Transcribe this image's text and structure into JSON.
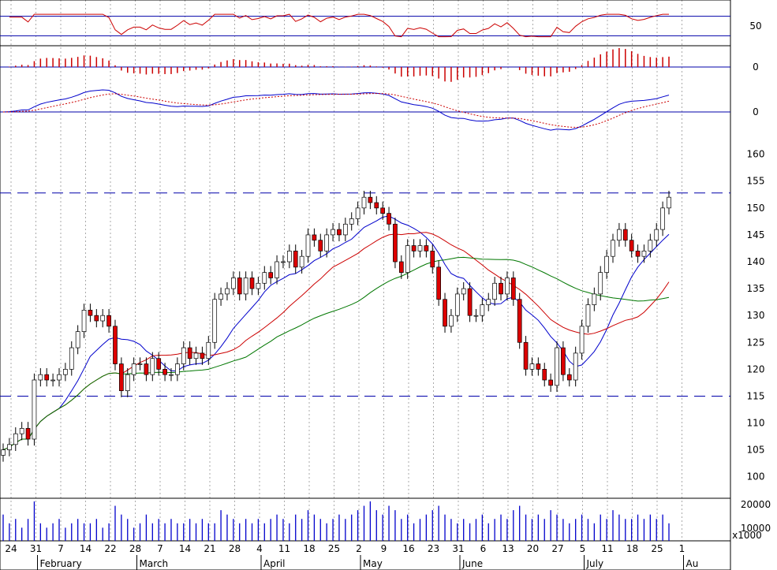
{
  "chart_data": [
    {
      "panel": "rsi",
      "type": "line",
      "ylim": [
        0,
        100
      ],
      "y_ticks": [
        {
          "v": 50,
          "label": "50"
        }
      ],
      "guides": [
        30,
        70
      ],
      "line_color": "#cc0000",
      "guide_color": "#0000aa"
    },
    {
      "panel": "macd_histogram",
      "type": "bar",
      "y_ticks": [
        {
          "v": 0,
          "label": "0"
        }
      ],
      "bar_color": "#cc0000"
    },
    {
      "panel": "macd",
      "type": "line",
      "y_ticks": [
        {
          "v": 0,
          "label": "0"
        }
      ],
      "series_colors": {
        "macd": "#0000cc",
        "signal": "#cc0000"
      }
    },
    {
      "panel": "price",
      "type": "candlestick",
      "ylim": [
        96,
        162
      ],
      "y_ticks": [
        {
          "v": 160,
          "label": "160"
        },
        {
          "v": 155,
          "label": "155"
        },
        {
          "v": 150,
          "label": "150"
        },
        {
          "v": 145,
          "label": "145"
        },
        {
          "v": 140,
          "label": "140"
        },
        {
          "v": 135,
          "label": "135"
        },
        {
          "v": 130,
          "label": "130"
        },
        {
          "v": 125,
          "label": "125"
        },
        {
          "v": 120,
          "label": "120"
        },
        {
          "v": 115,
          "label": "115"
        },
        {
          "v": 110,
          "label": "110"
        },
        {
          "v": 105,
          "label": "105"
        },
        {
          "v": 100,
          "label": "100"
        }
      ],
      "horizontal_lines": [
        152.8,
        115.0
      ],
      "colors": {
        "up": "#ffffff",
        "down": "#dd0000",
        "ma_fast": "#0000cc",
        "ma_mid": "#cc0000",
        "ma_slow": "#007700"
      },
      "closes": [
        105,
        106,
        108,
        109,
        107,
        118,
        119,
        118,
        118,
        119,
        120,
        124,
        127,
        131,
        130,
        129,
        130,
        128,
        121,
        116,
        119,
        121,
        121,
        119,
        122,
        120,
        119,
        119,
        121,
        124,
        122,
        123,
        122,
        125,
        133,
        134,
        135,
        137,
        134,
        137,
        135,
        136,
        138,
        137,
        140,
        140,
        142,
        139,
        141,
        145,
        144,
        142,
        145,
        146,
        145,
        147,
        148,
        150,
        152,
        151,
        150,
        149,
        147,
        140,
        138,
        143,
        142,
        143,
        142,
        139,
        133,
        128,
        130,
        134,
        135,
        130,
        130,
        132,
        133,
        136,
        134,
        137,
        133,
        125,
        120,
        121,
        120,
        118,
        117,
        124,
        119,
        118,
        123,
        128,
        132,
        134,
        138,
        141,
        144,
        146,
        144,
        142,
        141,
        142,
        144,
        146,
        150,
        152
      ],
      "volume": [
        6,
        4,
        5,
        3,
        5,
        9,
        4,
        3,
        4,
        5,
        3,
        4,
        5,
        4,
        4,
        5,
        3,
        4,
        8,
        6,
        5,
        3,
        4,
        6,
        4,
        5,
        4,
        5,
        4,
        4,
        5,
        4,
        5,
        4,
        4,
        7,
        6,
        5,
        4,
        5,
        4,
        5,
        4,
        5,
        6,
        5,
        4,
        6,
        5,
        7,
        6,
        5,
        4,
        5,
        6,
        5,
        6,
        7,
        8,
        9,
        7,
        6,
        8,
        7,
        5,
        6,
        4,
        5,
        6,
        7,
        8,
        6,
        5,
        4,
        5,
        4,
        5,
        6,
        4,
        5,
        6,
        5,
        7,
        8,
        6,
        5,
        6,
        5,
        7,
        6,
        5,
        4,
        5,
        6,
        5,
        4,
        6,
        5,
        7,
        6,
        5,
        5,
        6,
        5,
        6,
        5,
        6,
        4
      ],
      "volume_ticks": [
        {
          "v": 20000,
          "label": "20000"
        },
        {
          "v": 10000,
          "label": "10000"
        }
      ],
      "volume_unit": "x1000",
      "volume_color": "#0000cc"
    }
  ],
  "x_axis": {
    "day_labels": [
      "24",
      "31",
      "7",
      "14",
      "22",
      "28",
      "7",
      "14",
      "21",
      "28",
      "4",
      "11",
      "18",
      "25",
      "2",
      "9",
      "16",
      "23",
      "31",
      "6",
      "13",
      "20",
      "27",
      "5",
      "11",
      "18",
      "25",
      "1"
    ],
    "month_labels": [
      "February",
      "March",
      "April",
      "May",
      "June",
      "July",
      "Au"
    ]
  }
}
